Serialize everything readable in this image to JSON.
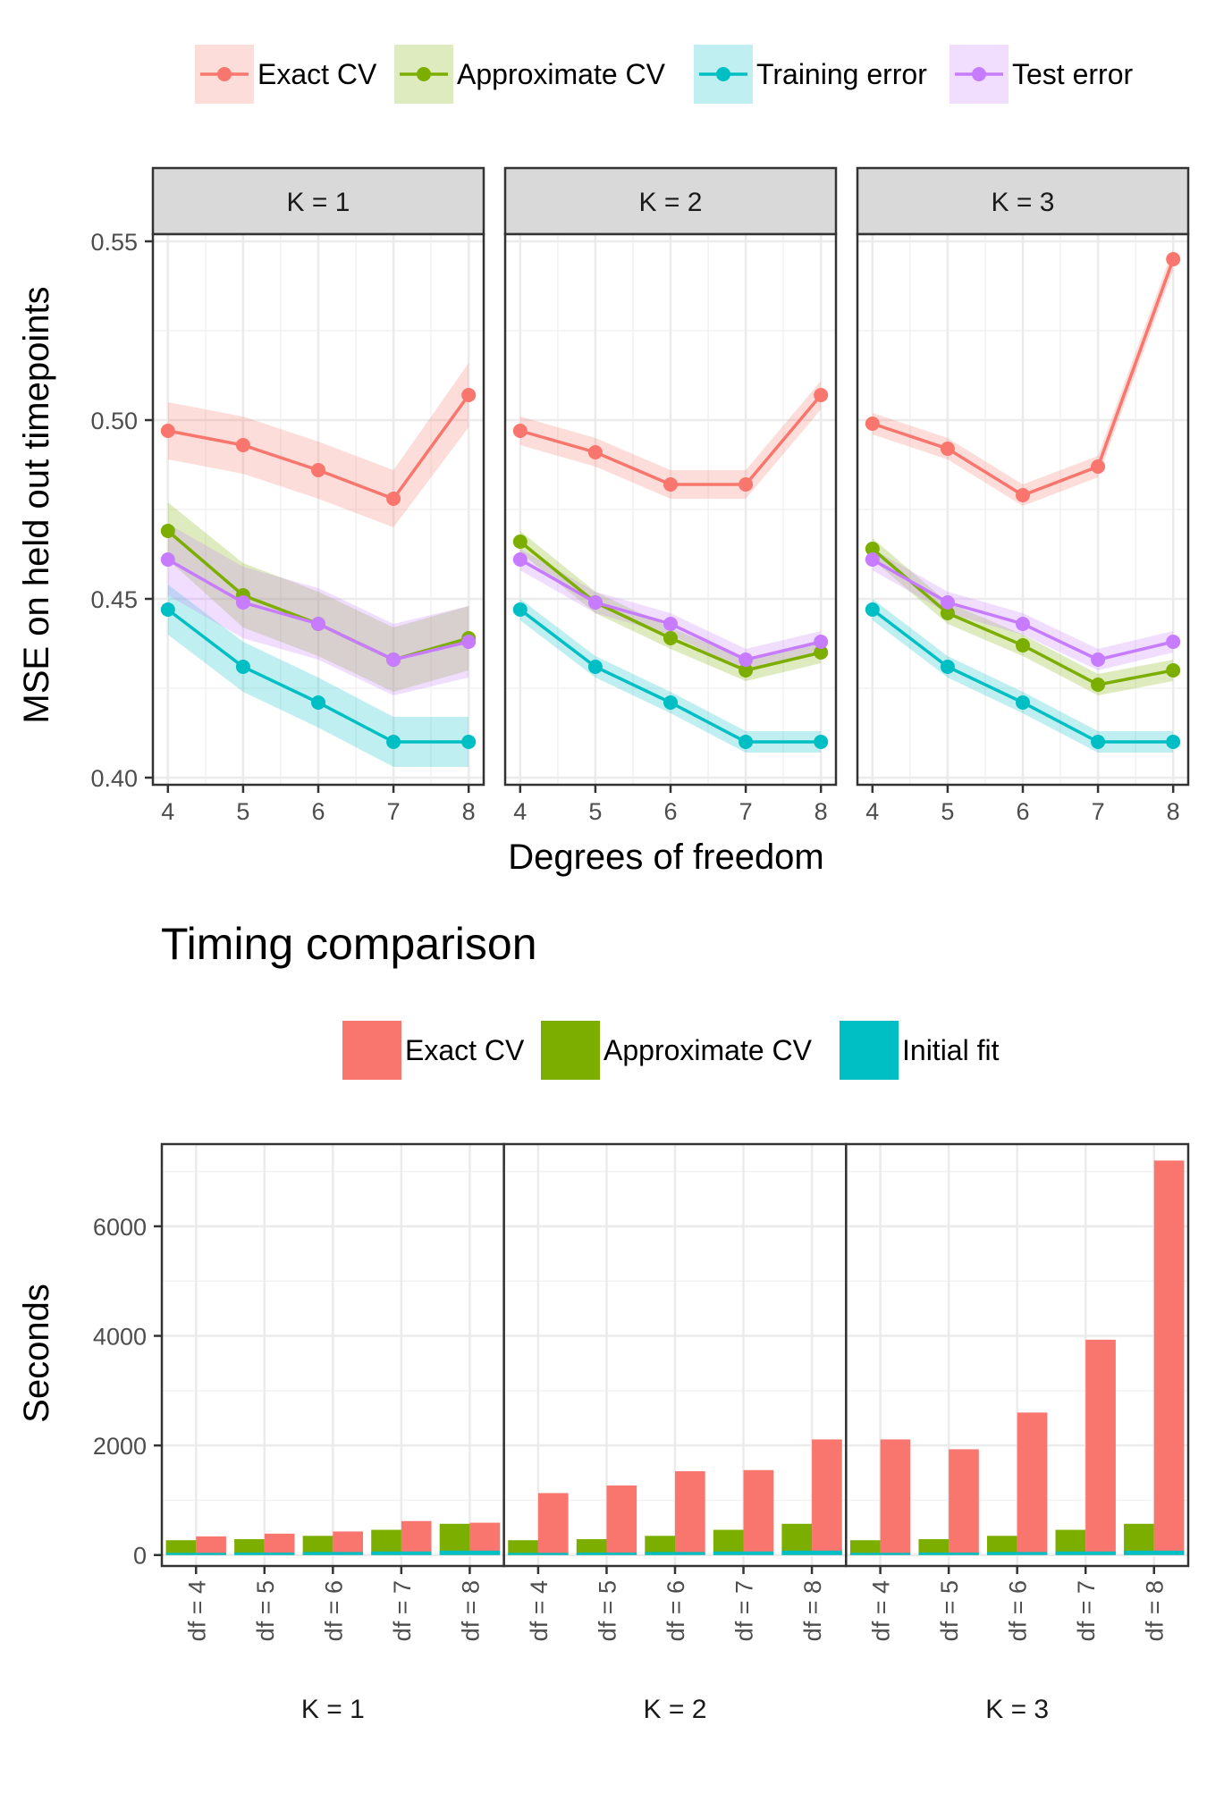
{
  "colors": {
    "exact_cv": "#F8766D",
    "approx_cv": "#7CAE00",
    "training": "#00BFC4",
    "test": "#C77CFF",
    "initial_fit": "#00BFC4"
  },
  "chart_data": [
    {
      "type": "line",
      "legend_position": "top",
      "legend": [
        "Exact CV",
        "Approximate CV",
        "Training error",
        "Test error"
      ],
      "xlabel": "Degrees of freedom",
      "ylabel": "MSE on held out timepoints",
      "ylim": [
        0.398,
        0.552
      ],
      "y_ticks": [
        "0.40",
        "0.45",
        "0.50",
        "0.55"
      ],
      "x": [
        4,
        5,
        6,
        7,
        8
      ],
      "x_ticks": [
        "4",
        "5",
        "6",
        "7",
        "8"
      ],
      "grid": true,
      "panels": [
        {
          "label": "K = 1",
          "series": [
            {
              "name": "Exact CV",
              "values": [
                0.497,
                0.493,
                0.486,
                0.478,
                0.507
              ],
              "band": [
                0.008,
                0.008,
                0.008,
                0.008,
                0.009
              ]
            },
            {
              "name": "Approximate CV",
              "values": [
                0.469,
                0.451,
                0.443,
                0.433,
                0.439
              ],
              "band": [
                0.008,
                0.009,
                0.009,
                0.009,
                0.009
              ]
            },
            {
              "name": "Training error",
              "values": [
                0.447,
                0.431,
                0.421,
                0.41,
                0.41
              ],
              "band": [
                0.007,
                0.007,
                0.007,
                0.007,
                0.007
              ]
            },
            {
              "name": "Test error",
              "values": [
                0.461,
                0.449,
                0.443,
                0.433,
                0.438
              ],
              "band": [
                0.01,
                0.01,
                0.01,
                0.01,
                0.01
              ]
            }
          ]
        },
        {
          "label": "K = 2",
          "series": [
            {
              "name": "Exact CV",
              "values": [
                0.497,
                0.491,
                0.482,
                0.482,
                0.507
              ],
              "band": [
                0.004,
                0.004,
                0.004,
                0.004,
                0.004
              ]
            },
            {
              "name": "Approximate CV",
              "values": [
                0.466,
                0.449,
                0.439,
                0.43,
                0.435
              ],
              "band": [
                0.003,
                0.003,
                0.003,
                0.003,
                0.003
              ]
            },
            {
              "name": "Training error",
              "values": [
                0.447,
                0.431,
                0.421,
                0.41,
                0.41
              ],
              "band": [
                0.003,
                0.003,
                0.003,
                0.003,
                0.003
              ]
            },
            {
              "name": "Test error",
              "values": [
                0.461,
                0.449,
                0.443,
                0.433,
                0.438
              ],
              "band": [
                0.003,
                0.003,
                0.003,
                0.003,
                0.003
              ]
            }
          ]
        },
        {
          "label": "K = 3",
          "series": [
            {
              "name": "Exact CV",
              "values": [
                0.499,
                0.492,
                0.479,
                0.487,
                0.545
              ],
              "band": [
                0.003,
                0.003,
                0.003,
                0.003,
                0.003
              ]
            },
            {
              "name": "Approximate CV",
              "values": [
                0.464,
                0.446,
                0.437,
                0.426,
                0.43
              ],
              "band": [
                0.003,
                0.003,
                0.003,
                0.003,
                0.003
              ]
            },
            {
              "name": "Training error",
              "values": [
                0.447,
                0.431,
                0.421,
                0.41,
                0.41
              ],
              "band": [
                0.003,
                0.003,
                0.003,
                0.003,
                0.003
              ]
            },
            {
              "name": "Test error",
              "values": [
                0.461,
                0.449,
                0.443,
                0.433,
                0.438
              ],
              "band": [
                0.003,
                0.003,
                0.003,
                0.003,
                0.003
              ]
            }
          ]
        }
      ]
    },
    {
      "type": "bar",
      "title": "Timing comparison",
      "legend_position": "top",
      "legend": [
        "Exact CV",
        "Approximate CV",
        "Initial fit"
      ],
      "ylabel": "Seconds",
      "ylim": [
        -200,
        7500
      ],
      "y_ticks": [
        "0",
        "2000",
        "4000",
        "6000"
      ],
      "categories": [
        "df = 4",
        "df = 5",
        "df = 6",
        "df = 7",
        "df = 8"
      ],
      "grid": true,
      "panels": [
        {
          "label": "K = 1",
          "series": [
            {
              "name": "Approximate CV",
              "values": [
                270,
                290,
                350,
                460,
                570
              ]
            },
            {
              "name": "Exact CV",
              "values": [
                340,
                390,
                430,
                620,
                590
              ]
            },
            {
              "name": "Initial fit",
              "values": [
                40,
                45,
                55,
                65,
                80
              ]
            }
          ]
        },
        {
          "label": "K = 2",
          "series": [
            {
              "name": "Approximate CV",
              "values": [
                270,
                290,
                350,
                460,
                570
              ]
            },
            {
              "name": "Exact CV",
              "values": [
                1130,
                1270,
                1530,
                1550,
                2110
              ]
            },
            {
              "name": "Initial fit",
              "values": [
                40,
                45,
                55,
                65,
                80
              ]
            }
          ]
        },
        {
          "label": "K = 3",
          "series": [
            {
              "name": "Approximate CV",
              "values": [
                270,
                290,
                350,
                460,
                570
              ]
            },
            {
              "name": "Exact CV",
              "values": [
                2110,
                1930,
                2600,
                3930,
                7200
              ]
            },
            {
              "name": "Initial fit",
              "values": [
                40,
                45,
                55,
                65,
                80
              ]
            }
          ]
        }
      ]
    }
  ]
}
